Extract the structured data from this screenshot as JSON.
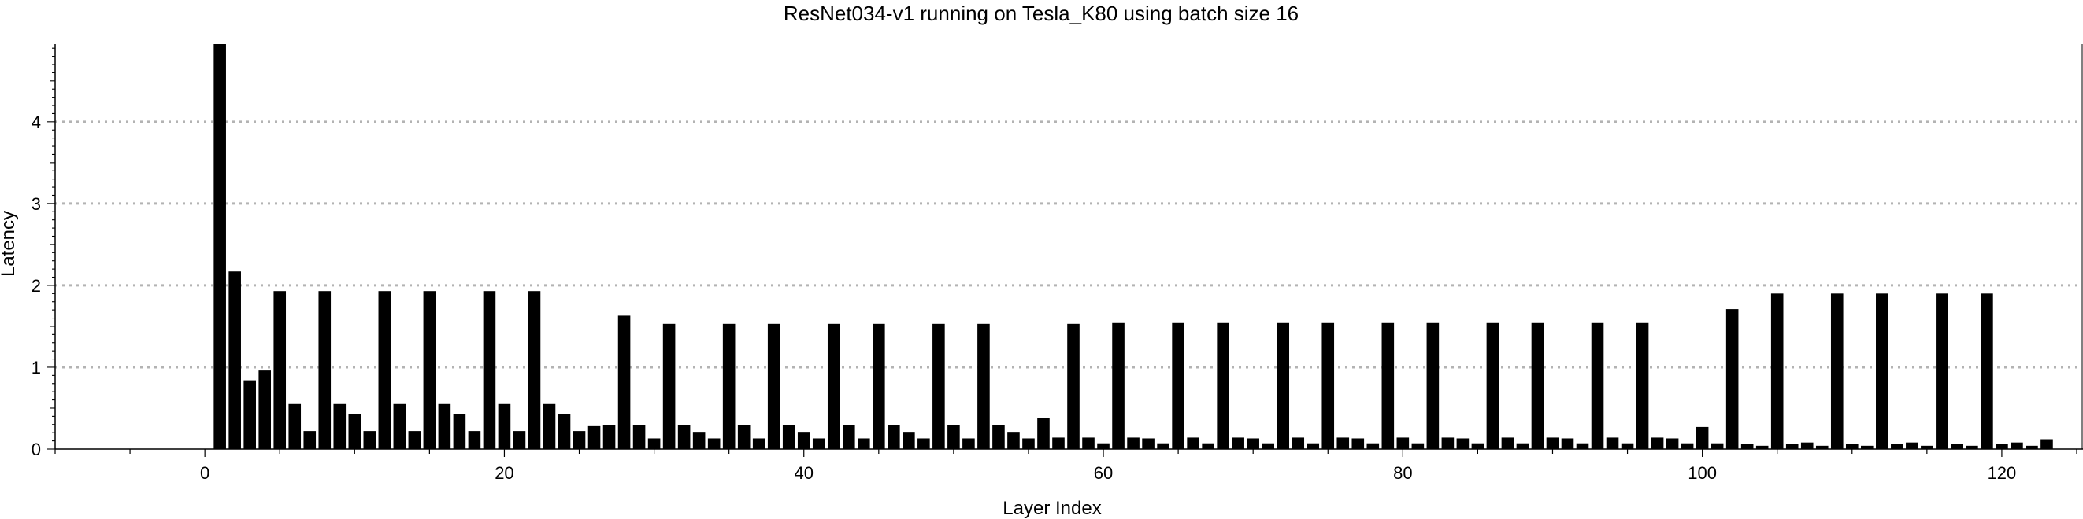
{
  "chart_data": {
    "type": "bar",
    "title": "ResNet034-v1 running on Tesla_K80 using batch size 16",
    "xlabel": "Layer Index",
    "ylabel": "Latency",
    "xlim": [
      -10,
      125
    ],
    "ylim": [
      0,
      4.95
    ],
    "xticks": [
      0,
      20,
      40,
      60,
      80,
      100,
      120
    ],
    "yticks": [
      1,
      2,
      3,
      4
    ],
    "grid": "horizontal dotted",
    "bar_color": "#000000",
    "grid_color": "#b3b3b3",
    "x": [
      1,
      2,
      3,
      4,
      5,
      6,
      7,
      8,
      9,
      10,
      11,
      12,
      13,
      14,
      15,
      16,
      17,
      18,
      19,
      20,
      21,
      22,
      23,
      24,
      25,
      26,
      27,
      28,
      29,
      30,
      31,
      32,
      33,
      34,
      35,
      36,
      37,
      38,
      39,
      40,
      41,
      42,
      43,
      44,
      45,
      46,
      47,
      48,
      49,
      50,
      51,
      52,
      53,
      54,
      55,
      56,
      57,
      58,
      59,
      60,
      61,
      62,
      63,
      64,
      65,
      66,
      67,
      68,
      69,
      70,
      71,
      72,
      73,
      74,
      75,
      76,
      77,
      78,
      79,
      80,
      81,
      82,
      83,
      84,
      85,
      86,
      87,
      88,
      89,
      90,
      91,
      92,
      93,
      94,
      95,
      96,
      97,
      98,
      99,
      100,
      101,
      102,
      103,
      104,
      105,
      106,
      107,
      108,
      109,
      110,
      111,
      112,
      113,
      114,
      115,
      116,
      117,
      118,
      119,
      120,
      121,
      122,
      123
    ],
    "values": [
      4.95,
      2.17,
      0.84,
      0.96,
      1.93,
      0.55,
      0.22,
      1.93,
      0.55,
      0.43,
      0.22,
      1.93,
      0.55,
      0.22,
      1.93,
      0.55,
      0.43,
      0.22,
      1.93,
      0.55,
      0.22,
      1.93,
      0.55,
      0.43,
      0.22,
      0.28,
      0.29,
      1.63,
      0.29,
      0.13,
      1.53,
      0.29,
      0.21,
      0.13,
      1.53,
      0.29,
      0.13,
      1.53,
      0.29,
      0.21,
      0.13,
      1.53,
      0.29,
      0.13,
      1.53,
      0.29,
      0.21,
      0.13,
      1.53,
      0.29,
      0.13,
      1.53,
      0.29,
      0.21,
      0.13,
      0.38,
      0.14,
      1.53,
      0.14,
      0.07,
      1.54,
      0.14,
      0.13,
      0.07,
      1.54,
      0.14,
      0.07,
      1.54,
      0.14,
      0.13,
      0.07,
      1.54,
      0.14,
      0.07,
      1.54,
      0.14,
      0.13,
      0.07,
      1.54,
      0.14,
      0.07,
      1.54,
      0.14,
      0.13,
      0.07,
      1.54,
      0.14,
      0.07,
      1.54,
      0.14,
      0.13,
      0.07,
      1.54,
      0.14,
      0.07,
      1.54,
      0.14,
      0.13,
      0.07,
      0.27,
      0.07,
      1.71,
      0.06,
      0.04,
      1.9,
      0.06,
      0.08,
      0.04,
      1.9,
      0.06,
      0.04,
      1.9,
      0.06,
      0.08,
      0.04,
      1.9,
      0.06,
      0.04,
      1.9,
      0.06,
      0.08,
      0.04,
      0.12
    ]
  }
}
